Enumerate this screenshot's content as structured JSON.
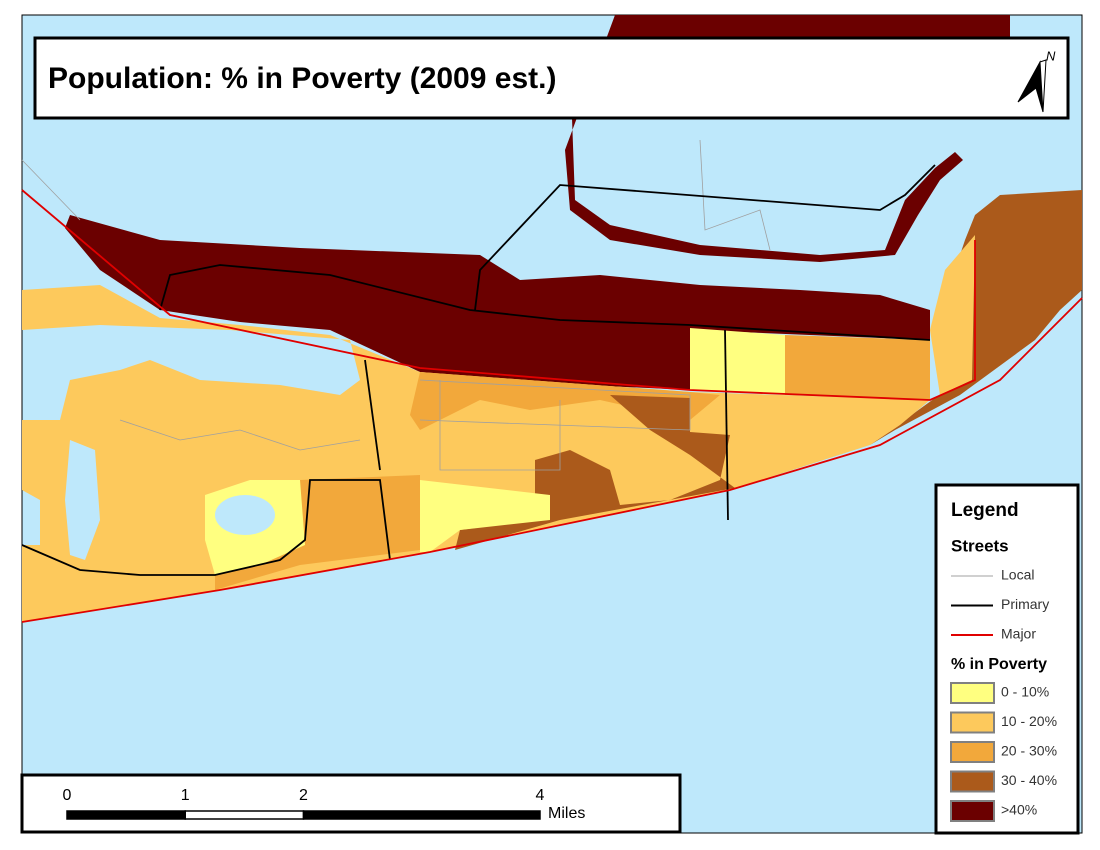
{
  "title": "Population: % in Poverty (2009 est.)",
  "north_arrow": "N",
  "legend": {
    "title": "Legend",
    "streets": {
      "title": "Streets",
      "items": [
        {
          "label": "Local",
          "color": "#a0a0a0"
        },
        {
          "label": "Primary",
          "color": "#000000"
        },
        {
          "label": "Major",
          "color": "#e00000"
        }
      ]
    },
    "poverty": {
      "title": "% in Poverty",
      "classes": [
        {
          "label": "0 - 10%",
          "color": "#ffff80"
        },
        {
          "label": "10 - 20%",
          "color": "#fdc95c"
        },
        {
          "label": "20 - 30%",
          "color": "#f2a83b"
        },
        {
          "label": "30 - 40%",
          "color": "#ab5a1b"
        },
        {
          "label": ">40%",
          "color": "#6b0000"
        }
      ]
    }
  },
  "scale_bar": {
    "ticks": [
      0,
      1,
      2,
      4
    ],
    "unit": "Miles"
  }
}
